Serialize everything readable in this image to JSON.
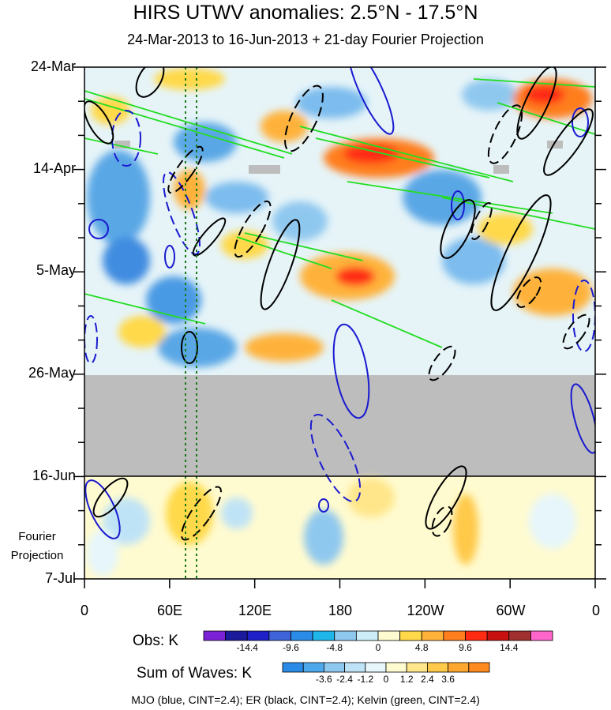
{
  "title": "HIRS UTWV anomalies: 2.5°N - 17.5°N",
  "subtitle": "24-Mar-2013 to 16-Jun-2013 + 21-day Fourier Projection",
  "chart_data": {
    "type": "heatmap",
    "x_tick_labels": [
      "0",
      "60E",
      "120E",
      "180",
      "120W",
      "60W",
      "0"
    ],
    "y_tick_labels": [
      "24-Mar",
      "14-Apr",
      "5-May",
      "26-May",
      "16-Jun",
      "7-Jul"
    ],
    "projection_label": [
      "Fourier",
      "Projection"
    ],
    "missing_period": [
      "26-May",
      "16-Jun"
    ],
    "reference_lines_lon": [
      70,
      78
    ],
    "obs_legend": {
      "label": "Obs: K",
      "ticks": [
        "-14.4",
        "-9.6",
        "-4.8",
        "0",
        "4.8",
        "9.6",
        "14.4"
      ],
      "colors": [
        "#7b22d6",
        "#1a1a9a",
        "#2020c8",
        "#3f63d8",
        "#2a8ce6",
        "#1fb6ea",
        "#8fc8ef",
        "#cdeef8",
        "#fffbd0",
        "#ffd94a",
        "#ffb23a",
        "#ff7e1e",
        "#ff2a12",
        "#c81010",
        "#a03030",
        "#ff66cc"
      ]
    },
    "waves_legend": {
      "label": "Sum of Waves: K",
      "ticks": [
        "-3.6",
        "-2.4",
        "-1.2",
        "0",
        "1.2",
        "2.4",
        "3.6"
      ],
      "colors": [
        "#2a8ce6",
        "#4ea8ec",
        "#8fc8ef",
        "#bfe3f6",
        "#e6f6fb",
        "#fffbd0",
        "#ffe68a",
        "#ffc94a",
        "#ffa830",
        "#ff8a1e"
      ]
    },
    "contour_series": [
      {
        "name": "MJO",
        "color": "#1a1ad0"
      },
      {
        "name": "ER",
        "color": "#000000"
      },
      {
        "name": "Kelvin",
        "color": "#22dd22"
      }
    ]
  },
  "footer": "MJO (blue, CINT=2.4); ER (black, CINT=2.4); Kelvin (green, CINT=2.4)"
}
